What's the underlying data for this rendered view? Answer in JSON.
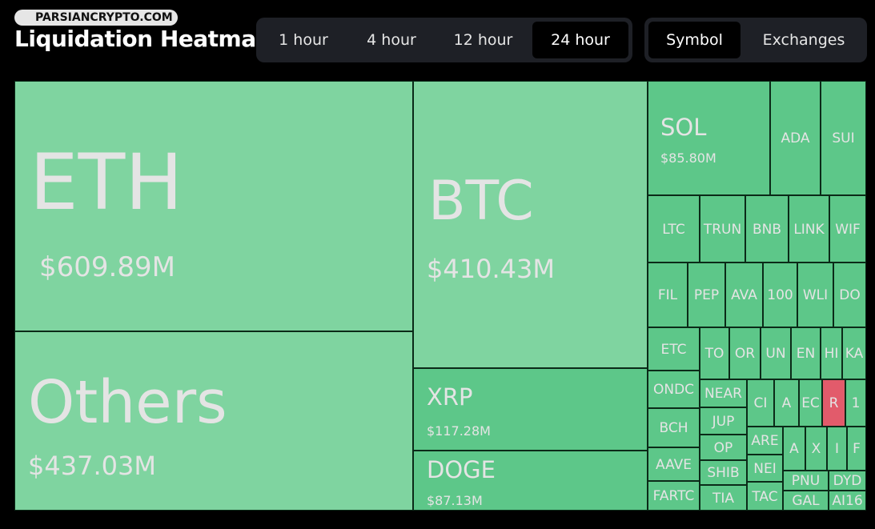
{
  "header": {
    "watermark": "PARSIANCRYPTO.COM",
    "title": "Liquidation Heatmap"
  },
  "time_filters": [
    "1 hour",
    "4 hour",
    "12 hour",
    "24 hour"
  ],
  "view_filters": [
    "Symbol",
    "Exchanges"
  ],
  "tiles": [
    {
      "label": "ETH",
      "value": "$609.89M"
    },
    {
      "label": "Others",
      "value": "$437.03M"
    },
    {
      "label": "BTC",
      "value": "$410.43M"
    },
    {
      "label": "XRP",
      "value": "$117.28M"
    },
    {
      "label": "DOGE",
      "value": "$87.13M"
    },
    {
      "label": "SOL",
      "value": "$85.80M"
    },
    {
      "label": "ADA"
    },
    {
      "label": "SUI"
    },
    {
      "label": "LTC"
    },
    {
      "label": "TRUN"
    },
    {
      "label": "BNB"
    },
    {
      "label": "LINK"
    },
    {
      "label": "WIF"
    },
    {
      "label": "FIL"
    },
    {
      "label": "PEP"
    },
    {
      "label": "AVA"
    },
    {
      "label": "100"
    },
    {
      "label": "WLI"
    },
    {
      "label": "DO"
    },
    {
      "label": "ETC"
    },
    {
      "label": "ONDC"
    },
    {
      "label": "BCH"
    },
    {
      "label": "AAVE"
    },
    {
      "label": "FARTC"
    },
    {
      "label": "TO"
    },
    {
      "label": "OR"
    },
    {
      "label": "UN"
    },
    {
      "label": "EN"
    },
    {
      "label": "HI"
    },
    {
      "label": "KA"
    },
    {
      "label": "NEAR"
    },
    {
      "label": "JUP"
    },
    {
      "label": "OP"
    },
    {
      "label": "SHIB"
    },
    {
      "label": "TIA"
    },
    {
      "label": "CI"
    },
    {
      "label": "ARE"
    },
    {
      "label": "NEI"
    },
    {
      "label": "TAC"
    },
    {
      "label": "A"
    },
    {
      "label": "EC"
    },
    {
      "label": "R"
    },
    {
      "label": "1"
    },
    {
      "label": "A"
    },
    {
      "label": "X"
    },
    {
      "label": "I"
    },
    {
      "label": "F"
    },
    {
      "label": "PNU"
    },
    {
      "label": "DYD"
    },
    {
      "label": "GAL"
    },
    {
      "label": "AI16"
    }
  ]
}
